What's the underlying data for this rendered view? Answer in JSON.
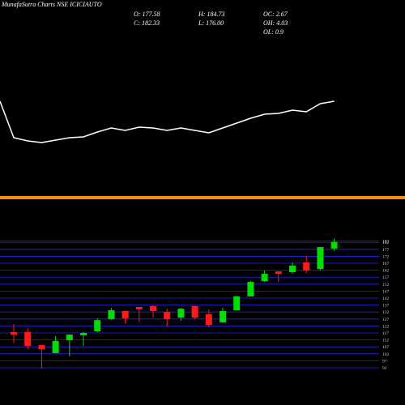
{
  "chart_data": [
    {
      "type": "line",
      "title": "MunafaSutra Charts NSE ICICIAUTO",
      "color": "#ffffff",
      "ylim": [
        0,
        100
      ],
      "stats": [
        "O: 177.58",
        "H: 184.73",
        "OC: 2.67",
        "C: 182.33",
        "L: 176.00",
        "OH: 4.03",
        "OL: 0.9"
      ],
      "values": [
        50,
        27.5,
        25.5,
        24.5,
        26,
        27.5,
        28,
        31,
        33.5,
        32,
        34,
        33.5,
        32,
        33.5,
        32,
        30.5,
        33.5,
        36.5,
        39.5,
        42,
        42.5,
        44.5,
        43.5,
        48.5,
        50
      ]
    },
    {
      "type": "candlestick",
      "up_color": "#00dd00",
      "down_color": "#ff1a1a",
      "grid": true,
      "grid_color": "#2222ee",
      "ylim": [
        92,
        183
      ],
      "yticks": [
        92,
        97,
        102,
        107,
        112,
        117,
        122,
        127,
        132,
        137,
        142,
        147,
        152,
        157,
        162,
        167,
        172,
        177,
        182,
        183
      ],
      "open": [
        117.6,
        117.6,
        108.3,
        102.5,
        111.8,
        115.3,
        118.2,
        126.9,
        132.7,
        135.6,
        136.2,
        132.1,
        128,
        136.2,
        130.4,
        124.6,
        133.3,
        143.2,
        154.2,
        161.2,
        160.6,
        167.6,
        162.9,
        177.58
      ],
      "high": [
        123.4,
        120.5,
        108.3,
        114.7,
        115.8,
        117.6,
        127.5,
        135,
        132.7,
        135.6,
        136.8,
        134.4,
        135,
        136.2,
        133.9,
        135,
        143.7,
        154.2,
        161.8,
        161.2,
        167.6,
        172.2,
        178.6,
        184.73
      ],
      "low": [
        110,
        105.4,
        91.4,
        102.5,
        100.1,
        107.7,
        117.6,
        126.3,
        124,
        125.1,
        128,
        121.7,
        125.7,
        126.9,
        121.1,
        124,
        133.3,
        143.2,
        153.6,
        153.6,
        159.4,
        160,
        161.8,
        176
      ],
      "close": [
        115.8,
        107.7,
        105.4,
        111.2,
        115.8,
        117,
        126.2,
        133.3,
        127.5,
        133.9,
        132.7,
        126.9,
        134.4,
        128,
        122.8,
        132.7,
        143.2,
        153.6,
        159.4,
        159.4,
        165.3,
        161.8,
        178.6,
        182.33
      ]
    }
  ]
}
